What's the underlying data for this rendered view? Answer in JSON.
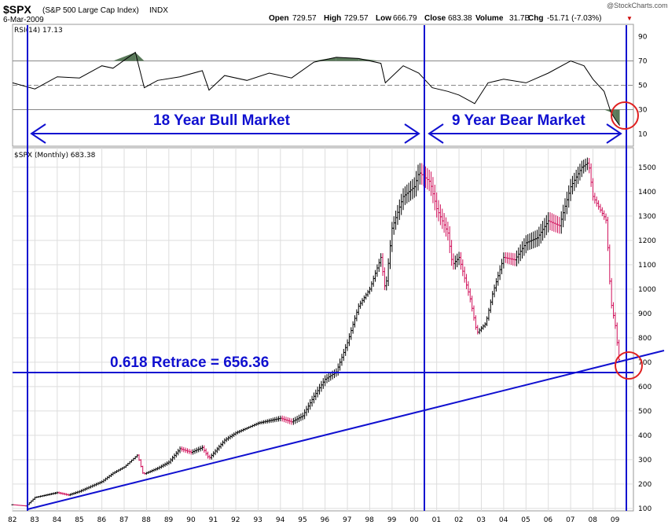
{
  "header": {
    "symbol": "$SPX",
    "name": "(S&P 500 Large Cap Index)",
    "exchange": "INDX",
    "date": "6-Mar-2009",
    "watermark": "@StockCharts.com",
    "open_label": "Open",
    "open": "729.57",
    "high_label": "High",
    "high": "729.57",
    "low_label": "Low",
    "low": "666.79",
    "close_label": "Close",
    "close": "683.38",
    "volume_label": "Volume",
    "volume": "31.7B",
    "chg_label": "Chg",
    "chg": "-51.71 (-7.03%)",
    "chg_marker": "▼"
  },
  "annotations": {
    "bull": "18 Year Bull Market",
    "bear": "9 Year Bear Market",
    "retrace": "0.618 Retrace = 656.36"
  },
  "colors": {
    "annotation": "#1010d0",
    "up_bar": "#000000",
    "down_bar": "#d0105a",
    "rsi_fill": "#5a7a5a",
    "circle": "#e02020",
    "grid": "#dddddd"
  },
  "chart_data": [
    {
      "type": "line",
      "title": "RSI(14) 17.13",
      "y_ticks": [
        10,
        30,
        50,
        70,
        90
      ],
      "ylim": [
        0,
        100
      ],
      "reference_lines": [
        30,
        50,
        70
      ],
      "x": [
        1982.0,
        1983.0,
        1984.0,
        1985.0,
        1986.0,
        1986.5,
        1987.5,
        1987.9,
        1988.5,
        1989.5,
        1990.5,
        1990.8,
        1991.5,
        1992.5,
        1993.5,
        1994.5,
        1995.5,
        1996.5,
        1997.5,
        1998.5,
        1998.7,
        1999.5,
        2000.2,
        2000.8,
        2001.5,
        2002.0,
        2002.7,
        2003.3,
        2004.0,
        2005.0,
        2006.0,
        2007.0,
        2007.6,
        2008.0,
        2008.5,
        2008.8,
        2009.0,
        2009.2
      ],
      "values": [
        52,
        47,
        57,
        56,
        66,
        64,
        77,
        48,
        54,
        57,
        62,
        46,
        58,
        54,
        60,
        56,
        69,
        73,
        72,
        68,
        52,
        66,
        60,
        48,
        45,
        42,
        35,
        52,
        55,
        52,
        60,
        70,
        66,
        55,
        45,
        28,
        22,
        17
      ],
      "overbought_fill_above": 70,
      "oversold_fill_below": 30
    },
    {
      "type": "bar",
      "subtype": "ohlc",
      "title": "$SPX (Monthly) 683.38",
      "x_ticks": [
        "82",
        "83",
        "84",
        "85",
        "86",
        "87",
        "88",
        "89",
        "90",
        "91",
        "92",
        "93",
        "94",
        "95",
        "96",
        "97",
        "98",
        "99",
        "00",
        "01",
        "02",
        "03",
        "04",
        "05",
        "06",
        "07",
        "08",
        "09"
      ],
      "y_ticks": [
        100,
        200,
        300,
        400,
        500,
        600,
        700,
        800,
        900,
        1000,
        1100,
        1200,
        1300,
        1400,
        1500
      ],
      "xlim": [
        1982.0,
        2009.25
      ],
      "ylim": [
        90,
        1580
      ],
      "x": [
        1982.0,
        1982.6,
        1983.0,
        1984.0,
        1984.5,
        1985.0,
        1985.5,
        1986.0,
        1986.5,
        1987.0,
        1987.6,
        1987.85,
        1988.5,
        1989.0,
        1989.5,
        1990.0,
        1990.5,
        1990.8,
        1991.5,
        1992.0,
        1993.0,
        1994.0,
        1994.5,
        1995.0,
        1995.5,
        1996.0,
        1996.5,
        1997.0,
        1997.5,
        1998.0,
        1998.5,
        1998.7,
        1999.0,
        1999.5,
        2000.0,
        2000.2,
        2000.7,
        2001.0,
        2001.5,
        2001.7,
        2002.0,
        2002.5,
        2002.8,
        2003.2,
        2003.5,
        2004.0,
        2004.5,
        2005.0,
        2005.5,
        2006.0,
        2006.5,
        2007.0,
        2007.5,
        2007.8,
        2008.0,
        2008.3,
        2008.6,
        2008.8,
        2009.0,
        2009.2
      ],
      "values": [
        115,
        110,
        145,
        165,
        155,
        170,
        190,
        210,
        245,
        270,
        320,
        240,
        265,
        290,
        345,
        330,
        350,
        305,
        380,
        410,
        450,
        470,
        455,
        480,
        560,
        630,
        660,
        780,
        930,
        1000,
        1130,
        990,
        1250,
        1380,
        1420,
        1480,
        1440,
        1330,
        1230,
        1100,
        1130,
        960,
        820,
        860,
        980,
        1130,
        1120,
        1190,
        1210,
        1280,
        1260,
        1420,
        1500,
        1520,
        1380,
        1330,
        1280,
        950,
        850,
        683
      ]
    }
  ]
}
